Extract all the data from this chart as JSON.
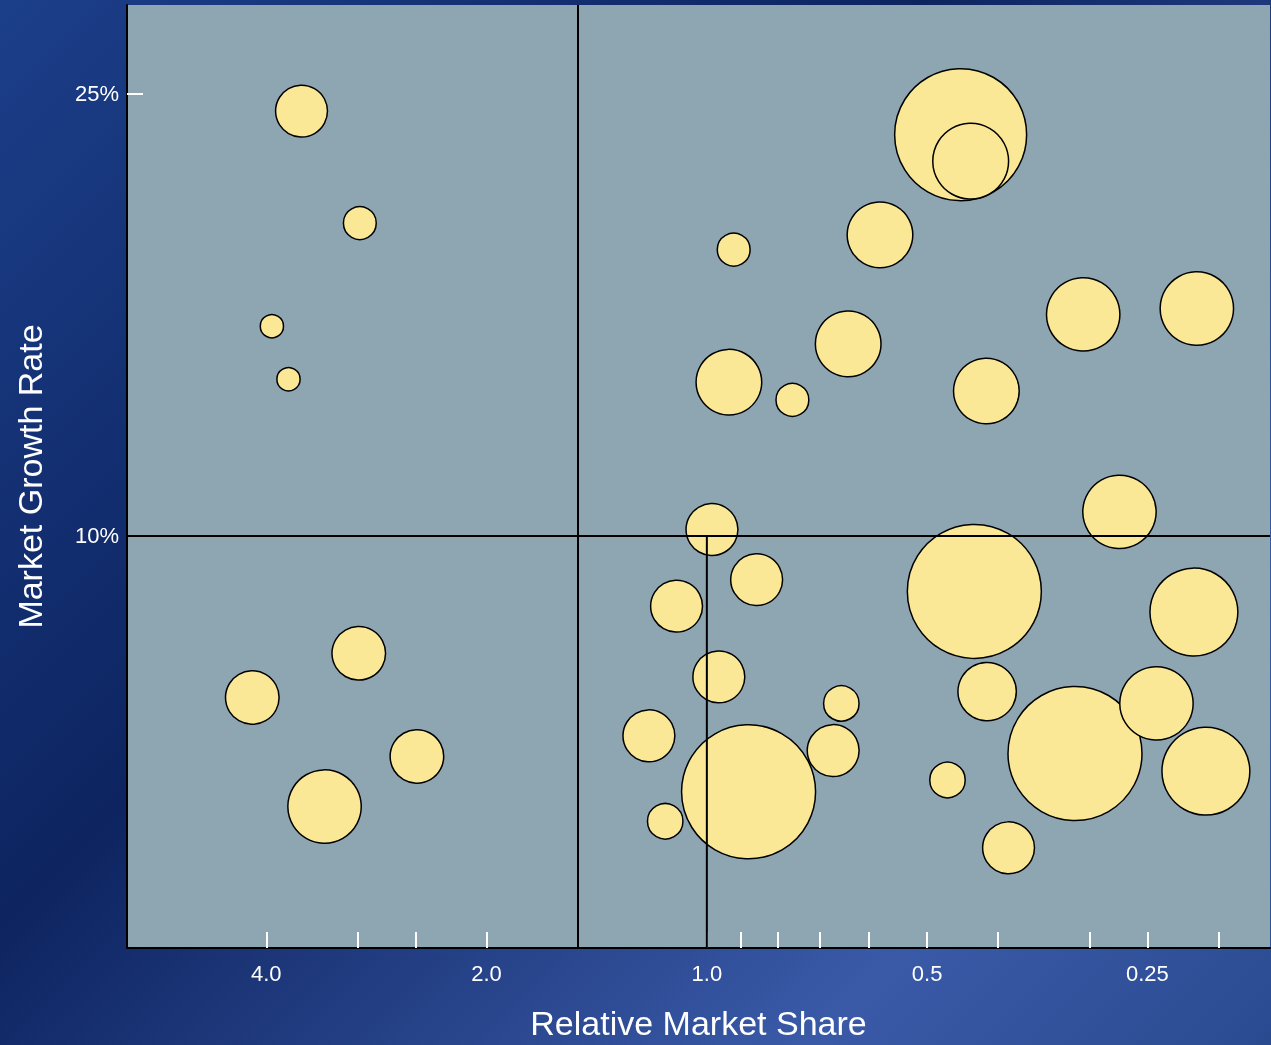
{
  "chart_data": {
    "type": "bubble",
    "xlabel": "Relative Market Share",
    "ylabel": "Market Growth Rate",
    "log": "x",
    "xlim": [
      6.2,
      0.17
    ],
    "xticks": [
      {
        "value": 4,
        "label": "4.0"
      },
      {
        "value": 3,
        "label": null
      },
      {
        "value": 2.5,
        "label": null
      },
      {
        "value": 2,
        "label": "2.0"
      },
      {
        "value": 1,
        "label": "1.0"
      },
      {
        "value": 0.9,
        "label": null
      },
      {
        "value": 0.8,
        "label": null
      },
      {
        "value": 0.7,
        "label": null
      },
      {
        "value": 0.6,
        "label": null
      },
      {
        "value": 0.5,
        "label": "0.5"
      },
      {
        "value": 0.4,
        "label": null
      },
      {
        "value": 0.3,
        "label": null
      },
      {
        "value": 0.25,
        "label": "0.25"
      },
      {
        "value": 0.2,
        "label": null
      }
    ],
    "ylim": [
      -4,
      28
    ],
    "yticks": [
      {
        "value": 10,
        "label": "10%"
      },
      {
        "value": 25,
        "label": "25%"
      }
    ],
    "grid": false,
    "marker": "circle",
    "ref_lines": [
      {
        "axis": "y",
        "value": 10,
        "color": "#000000"
      },
      {
        "axis": "x",
        "value": 1.5,
        "color": "#000000"
      }
    ],
    "series": [
      {
        "color": "#fbe896",
        "x": [
          3.58,
          2.98,
          3.93,
          3.73,
          4.18,
          2.99,
          2.49,
          3.33,
          0.45,
          0.436,
          0.919,
          0.58,
          0.641,
          0.933,
          0.764,
          0.415,
          0.306,
          0.214,
          0.273,
          0.984,
          0.855,
          1.1,
          0.963,
          1.2,
          1.14,
          0.877,
          0.655,
          0.672,
          0.431,
          0.414,
          0.469,
          0.387,
          0.314,
          0.243,
          0.216,
          0.208
        ],
        "values": [
          24.4,
          20.6,
          17.1,
          15.3,
          4.5,
          6.0,
          2.5,
          0.8,
          23.6,
          22.7,
          19.7,
          20.2,
          16.5,
          15.2,
          14.6,
          14.9,
          17.5,
          17.7,
          10.8,
          10.2,
          8.5,
          7.6,
          5.2,
          3.2,
          0.3,
          1.3,
          4.3,
          2.7,
          8.1,
          4.7,
          1.7,
          -0.6,
          2.6,
          4.3,
          7.4,
          2.0
        ],
        "sizes": [
          0.15,
          0.06,
          0.03,
          0.03,
          0.16,
          0.16,
          0.16,
          0.3,
          0.97,
          0.32,
          0.06,
          0.24,
          0.24,
          0.24,
          0.06,
          0.24,
          0.3,
          0.3,
          0.3,
          0.15,
          0.15,
          0.15,
          0.15,
          0.15,
          0.07,
          1,
          0.07,
          0.15,
          1,
          0.19,
          0.07,
          0.15,
          1,
          0.3,
          0.43,
          0.43
        ]
      },
      {
        "type": "line",
        "color": "#000000",
        "marker": "none",
        "x": [
          1,
          1
        ],
        "values": [
          -4,
          10
        ]
      }
    ]
  }
}
